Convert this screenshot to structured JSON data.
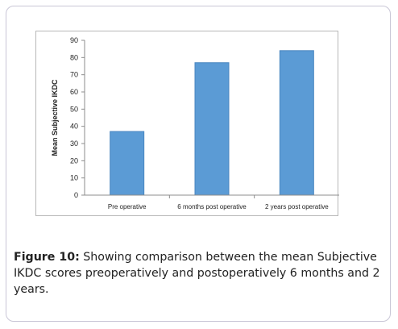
{
  "caption": {
    "label": "Figure 10:",
    "text": " Showing comparison between the mean Subjective IKDC scores preoperatively and postoperatively 6 months and 2 years."
  },
  "chart_data": {
    "type": "bar",
    "title": "",
    "xlabel": "",
    "ylabel": "Mean Subjective IKDC",
    "categories": [
      "Pre operative",
      "6 months post operative",
      "2 years post operative"
    ],
    "values": [
      37,
      77,
      84
    ],
    "ylim": [
      0,
      90
    ],
    "yticks": [
      0,
      10,
      20,
      30,
      40,
      50,
      60,
      70,
      80,
      90
    ],
    "grid": false,
    "legend": "none",
    "colors": {
      "bar": "#5b9bd5",
      "bar_edge": "#4a86c0",
      "axis": "#8c8c8c",
      "text": "#222222"
    }
  }
}
